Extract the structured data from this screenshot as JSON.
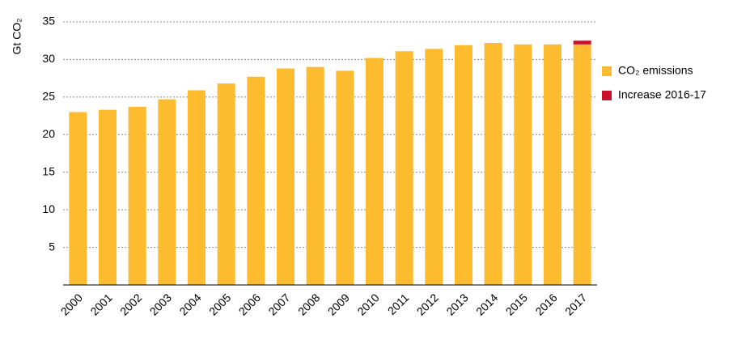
{
  "chart_data": {
    "type": "bar",
    "stacked": true,
    "y_label": "Gt CO₂",
    "categories": [
      "2000",
      "2001",
      "2002",
      "2003",
      "2004",
      "2005",
      "2006",
      "2007",
      "2008",
      "2009",
      "2010",
      "2011",
      "2012",
      "2013",
      "2014",
      "2015",
      "2016",
      "2017"
    ],
    "series": [
      {
        "name": "CO₂ emissions",
        "color": "#fdbb30",
        "values": [
          23.0,
          23.3,
          23.7,
          24.7,
          25.9,
          26.8,
          27.7,
          28.8,
          29.0,
          28.5,
          30.2,
          31.1,
          31.4,
          31.9,
          32.2,
          32.0,
          32.0,
          32.0
        ]
      },
      {
        "name": "Increase 2016-17",
        "color": "#c8102e",
        "values": [
          null,
          null,
          null,
          null,
          null,
          null,
          null,
          null,
          null,
          null,
          null,
          null,
          null,
          null,
          null,
          null,
          null,
          0.5
        ]
      }
    ],
    "ylim": [
      0,
      35
    ],
    "yticks": [
      5,
      10,
      15,
      20,
      25,
      30,
      35
    ],
    "grid": true,
    "legend": "right"
  }
}
